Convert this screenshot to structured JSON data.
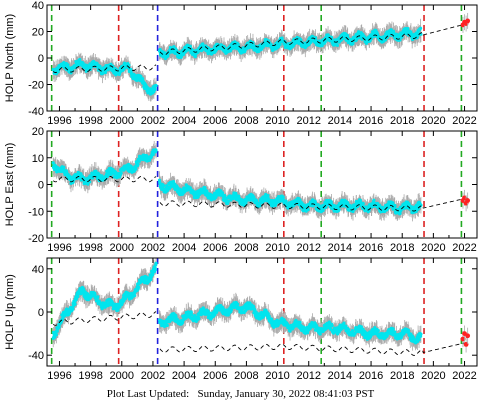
{
  "chart_data": [
    {
      "type": "scatter",
      "ylabel": "HOLP North (mm)",
      "ylim": [
        -40,
        40
      ],
      "yticks": [
        -40,
        -20,
        0,
        20,
        40
      ],
      "xlim": [
        1995.2,
        2022.8
      ],
      "xticks": [
        1996,
        1998,
        2000,
        2002,
        2004,
        2006,
        2008,
        2010,
        2012,
        2014,
        2016,
        2018,
        2020,
        2022
      ],
      "grid": false,
      "breaks": [
        {
          "year": 1995.5,
          "color": "#22aa22"
        },
        {
          "year": 1999.8,
          "color": "#dd2222"
        },
        {
          "year": 2002.3,
          "color": "#2222dd"
        },
        {
          "year": 2010.4,
          "color": "#dd2222"
        },
        {
          "year": 2012.8,
          "color": "#22aa22"
        },
        {
          "year": 2019.4,
          "color": "#dd2222"
        },
        {
          "year": 2021.8,
          "color": "#22aa22"
        }
      ],
      "series": [
        {
          "kind": "observed",
          "color": "#00e5ee",
          "error_color": "#aaaaaa",
          "x": [
            1995.6,
            1996.5,
            1997.5,
            1998.5,
            1999.5,
            2000.5,
            2001.5,
            2002.2,
            2002.4,
            2004,
            2006,
            2008,
            2010,
            2012,
            2014,
            2016,
            2018,
            2019.2
          ],
          "y": [
            -8,
            -7,
            -5,
            -7,
            -9,
            -8,
            -22,
            -25,
            4,
            5,
            7,
            8,
            10,
            12,
            14,
            16,
            18,
            18
          ]
        },
        {
          "kind": "model",
          "color": "#000000",
          "x": [
            1995.6,
            2002.2,
            2002.4,
            2010.4,
            2019.2,
            2022.2
          ],
          "y": [
            -9,
            -7,
            4,
            12,
            17,
            26
          ]
        },
        {
          "kind": "recent",
          "color": "#ff2222",
          "x": [
            2021.9,
            2022.0,
            2022.1,
            2022.2
          ],
          "y": [
            25,
            27,
            26,
            28
          ]
        }
      ]
    },
    {
      "type": "scatter",
      "ylabel": "HOLP East (mm)",
      "ylim": [
        -20,
        20
      ],
      "yticks": [
        -20,
        -10,
        0,
        10,
        20
      ],
      "xlim": [
        1995.2,
        2022.8
      ],
      "xticks": [
        1996,
        1998,
        2000,
        2002,
        2004,
        2006,
        2008,
        2010,
        2012,
        2014,
        2016,
        2018,
        2020,
        2022
      ],
      "grid": false,
      "breaks": [
        {
          "year": 1995.5,
          "color": "#22aa22"
        },
        {
          "year": 1999.8,
          "color": "#dd2222"
        },
        {
          "year": 2002.3,
          "color": "#2222dd"
        },
        {
          "year": 2010.4,
          "color": "#dd2222"
        },
        {
          "year": 2012.8,
          "color": "#22aa22"
        },
        {
          "year": 2019.4,
          "color": "#dd2222"
        },
        {
          "year": 2021.8,
          "color": "#22aa22"
        }
      ],
      "series": [
        {
          "kind": "observed",
          "color": "#00e5ee",
          "error_color": "#aaaaaa",
          "x": [
            1995.6,
            1996.5,
            1997.5,
            1998.5,
            1999.5,
            2000.5,
            2001.5,
            2002.2,
            2002.4,
            2004,
            2006,
            2008,
            2010,
            2012,
            2014,
            2016,
            2018,
            2019.2
          ],
          "y": [
            8,
            3,
            2,
            3,
            4,
            6,
            10,
            12,
            0,
            -2,
            -4,
            -6,
            -6,
            -8,
            -8,
            -8,
            -9,
            -8
          ]
        },
        {
          "kind": "model",
          "color": "#000000",
          "x": [
            1995.6,
            2002.2,
            2002.4,
            2010.4,
            2019.2,
            2022.2
          ],
          "y": [
            2,
            2,
            -7,
            -8,
            -9,
            -5
          ]
        },
        {
          "kind": "recent",
          "color": "#ff2222",
          "x": [
            2021.9,
            2022.0,
            2022.1,
            2022.2
          ],
          "y": [
            -6,
            -5,
            -7,
            -6
          ]
        }
      ]
    },
    {
      "type": "scatter",
      "ylabel": "HOLP Up (mm)",
      "ylim": [
        -50,
        50
      ],
      "yticks": [
        -40,
        0,
        40
      ],
      "xlim": [
        1995.2,
        2022.8
      ],
      "xticks": [
        1996,
        1998,
        2000,
        2002,
        2004,
        2006,
        2008,
        2010,
        2012,
        2014,
        2016,
        2018,
        2020,
        2022
      ],
      "grid": false,
      "breaks": [
        {
          "year": 1995.5,
          "color": "#22aa22"
        },
        {
          "year": 1999.8,
          "color": "#dd2222"
        },
        {
          "year": 2002.3,
          "color": "#2222dd"
        },
        {
          "year": 2010.4,
          "color": "#dd2222"
        },
        {
          "year": 2012.8,
          "color": "#22aa22"
        },
        {
          "year": 2019.4,
          "color": "#dd2222"
        },
        {
          "year": 2021.8,
          "color": "#22aa22"
        }
      ],
      "series": [
        {
          "kind": "observed",
          "color": "#00e5ee",
          "error_color": "#aaaaaa",
          "x": [
            1995.6,
            1996.5,
            1997.5,
            1998.5,
            1999.5,
            2000.5,
            2001.5,
            2002.2,
            2002.4,
            2004,
            2006,
            2008,
            2010,
            2012,
            2014,
            2016,
            2018,
            2019.2
          ],
          "y": [
            -20,
            0,
            20,
            10,
            5,
            15,
            30,
            40,
            -10,
            -5,
            0,
            5,
            -10,
            -15,
            -15,
            -20,
            -20,
            -25
          ]
        },
        {
          "kind": "model",
          "color": "#000000",
          "x": [
            1995.6,
            2002.2,
            2002.4,
            2010.4,
            2019.2,
            2022.2
          ],
          "y": [
            -10,
            -2,
            -35,
            -32,
            -38,
            -28
          ]
        },
        {
          "kind": "recent",
          "color": "#ff2222",
          "x": [
            2021.9,
            2022.0,
            2022.1,
            2022.2
          ],
          "y": [
            -25,
            -20,
            -30,
            -22
          ]
        }
      ]
    }
  ],
  "footer": {
    "label": "Plot Last Updated:",
    "value": "Sunday, January 30, 2022 08:41:03 PST"
  }
}
